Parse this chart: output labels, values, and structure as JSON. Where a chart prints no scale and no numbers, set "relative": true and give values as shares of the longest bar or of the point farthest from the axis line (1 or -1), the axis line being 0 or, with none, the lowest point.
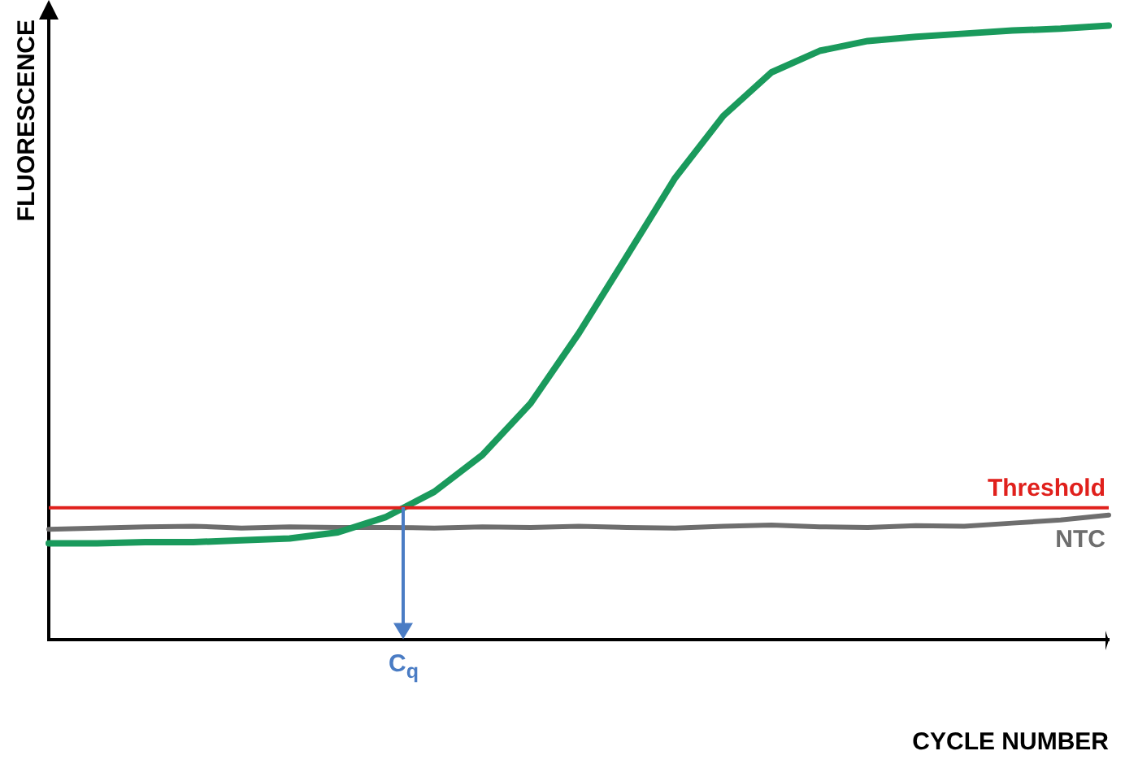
{
  "chart_data": {
    "type": "line",
    "relative": true,
    "xlabel": "CYCLE NUMBER",
    "ylabel": "FLUORESCENCE",
    "categories": [
      null,
      null,
      null,
      null,
      null,
      null,
      null,
      null,
      null,
      null,
      null,
      null,
      null,
      null,
      null,
      null,
      null,
      null,
      null,
      null,
      null,
      null,
      null
    ],
    "series": [
      {
        "color": "#1a9a5c",
        "values": [
          0.157,
          0.157,
          0.159,
          0.159,
          0.162,
          0.165,
          0.175,
          0.2,
          0.241,
          0.301,
          0.385,
          0.499,
          0.625,
          0.752,
          0.853,
          0.924,
          0.959,
          0.975,
          0.982,
          0.987,
          0.992,
          0.995,
          1
        ]
      },
      {
        "name": "NTC",
        "color": "#6e6e6e",
        "values": [
          0.18,
          0.182,
          0.184,
          0.185,
          0.182,
          0.184,
          0.183,
          0.183,
          0.182,
          0.184,
          0.183,
          0.185,
          0.183,
          0.182,
          0.185,
          0.187,
          0.184,
          0.183,
          0.186,
          0.185,
          0.19,
          0.195,
          0.203
        ]
      }
    ],
    "ref_lines": [
      {
        "axis": "y",
        "value": 0.215,
        "label": "Threshold",
        "color": "#e0201c"
      }
    ],
    "annotations": [
      "C$_{q}$"
    ],
    "grid": false,
    "legend": false,
    "marker": "none",
    "line_style": "solid"
  }
}
